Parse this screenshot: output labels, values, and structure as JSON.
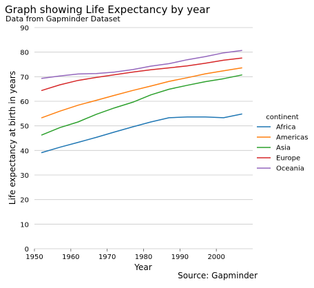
{
  "chart_data": {
    "type": "line",
    "title": "Graph showing Life Expectancy by year",
    "subtitle": "Data from Gapminder Dataset",
    "caption": "Source: Gapminder",
    "xlabel": "Year",
    "ylabel": "Life expectancy at birth in years",
    "xlim": [
      1950,
      2010
    ],
    "ylim": [
      0,
      90
    ],
    "xticks": [
      1950,
      1960,
      1970,
      1980,
      1990,
      2000
    ],
    "yticks": [
      0,
      10,
      20,
      30,
      40,
      50,
      60,
      70,
      80,
      90
    ],
    "grid": "horizontal",
    "legend": {
      "title": "continent",
      "placement": "right"
    },
    "x": [
      1952,
      1957,
      1962,
      1967,
      1972,
      1977,
      1982,
      1987,
      1992,
      1997,
      2002,
      2007
    ],
    "series": [
      {
        "name": "Africa",
        "color": "#1f77b4",
        "values": [
          39.1,
          41.3,
          43.3,
          45.3,
          47.5,
          49.6,
          51.6,
          53.3,
          53.6,
          53.6,
          53.3,
          54.8
        ]
      },
      {
        "name": "Americas",
        "color": "#ff7f0e",
        "values": [
          53.3,
          56.0,
          58.4,
          60.4,
          62.4,
          64.4,
          66.2,
          68.1,
          69.6,
          71.2,
          72.4,
          73.6
        ]
      },
      {
        "name": "Asia",
        "color": "#2ca02c",
        "values": [
          46.3,
          49.3,
          51.6,
          54.7,
          57.3,
          59.6,
          62.6,
          64.9,
          66.5,
          68.0,
          69.2,
          70.7
        ]
      },
      {
        "name": "Europe",
        "color": "#d62728",
        "values": [
          64.4,
          66.7,
          68.5,
          69.7,
          70.8,
          71.9,
          72.8,
          73.6,
          74.4,
          75.5,
          76.7,
          77.6
        ]
      },
      {
        "name": "Oceania",
        "color": "#9467bd",
        "values": [
          69.3,
          70.3,
          71.1,
          71.3,
          71.9,
          72.9,
          74.3,
          75.3,
          76.9,
          78.2,
          79.7,
          80.7
        ]
      }
    ]
  }
}
